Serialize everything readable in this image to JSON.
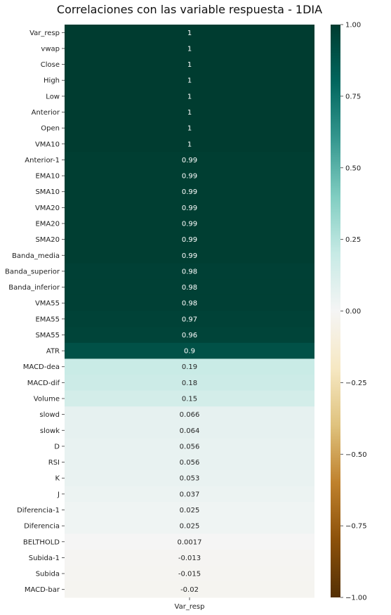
{
  "chart_data": {
    "type": "heatmap",
    "title": "Correlaciones con las variable respuesta - 1DIA",
    "xlabel": "",
    "ylabel": "",
    "columns": [
      "Var_resp"
    ],
    "rows": [
      "Var_resp",
      "vwap",
      "Close",
      "High",
      "Low",
      "Anterior",
      "Open",
      "VMA10",
      "Anterior-1",
      "EMA10",
      "SMA10",
      "VMA20",
      "EMA20",
      "SMA20",
      "Banda_media",
      "Banda_superior",
      "Banda_inferior",
      "VMA55",
      "EMA55",
      "SMA55",
      "ATR",
      "MACD-dea",
      "MACD-dif",
      "Volume",
      "slowd",
      "slowk",
      "D",
      "RSI",
      "K",
      "J",
      "Diferencia-1",
      "Diferencia",
      "BELTHOLD",
      "Subida-1",
      "Subida",
      "MACD-bar"
    ],
    "values": [
      1,
      1,
      1,
      1,
      1,
      1,
      1,
      1,
      0.99,
      0.99,
      0.99,
      0.99,
      0.99,
      0.99,
      0.99,
      0.98,
      0.98,
      0.98,
      0.97,
      0.96,
      0.9,
      0.19,
      0.18,
      0.15,
      0.066,
      0.064,
      0.056,
      0.056,
      0.053,
      0.037,
      0.025,
      0.025,
      0.0017,
      -0.013,
      -0.015,
      -0.02
    ],
    "value_labels": [
      "1",
      "1",
      "1",
      "1",
      "1",
      "1",
      "1",
      "1",
      "0.99",
      "0.99",
      "0.99",
      "0.99",
      "0.99",
      "0.99",
      "0.99",
      "0.98",
      "0.98",
      "0.98",
      "0.97",
      "0.96",
      "0.9",
      "0.19",
      "0.18",
      "0.15",
      "0.066",
      "0.064",
      "0.056",
      "0.056",
      "0.053",
      "0.037",
      "0.025",
      "0.025",
      "0.0017",
      "-0.013",
      "-0.015",
      "-0.02"
    ],
    "colorbar": {
      "colormap": "BrBG",
      "range": [
        -1,
        1
      ],
      "ticks": [
        1.0,
        0.75,
        0.5,
        0.25,
        0.0,
        -0.25,
        -0.5,
        -0.75,
        -1.0
      ],
      "tick_labels": [
        "1.00",
        "0.75",
        "0.50",
        "0.25",
        "0.00",
        "−0.25",
        "−0.50",
        "−0.75",
        "−1.00"
      ]
    },
    "grid": false
  }
}
